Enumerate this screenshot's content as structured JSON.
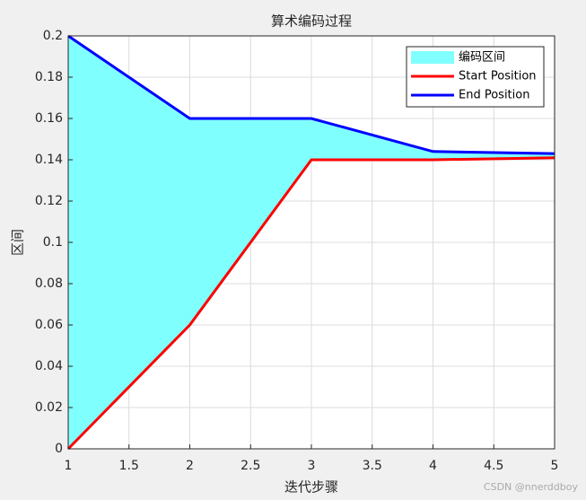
{
  "chart_data": {
    "type": "line",
    "title": "算术编码过程",
    "xlabel": "迭代步骤",
    "ylabel": "区间",
    "x": [
      1,
      2,
      3,
      4,
      5
    ],
    "series": [
      {
        "name": "Start Position",
        "color": "#ff0000",
        "values": [
          0,
          0.06,
          0.14,
          0.14,
          0.141
        ]
      },
      {
        "name": "End Position",
        "color": "#0000ff",
        "values": [
          0.2,
          0.16,
          0.16,
          0.144,
          0.143
        ]
      }
    ],
    "fill": {
      "name": "编码区间",
      "color": "#80ffff"
    },
    "xlim": [
      1,
      5
    ],
    "xticks": [
      1,
      1.5,
      2,
      2.5,
      3,
      3.5,
      4,
      4.5,
      5
    ],
    "ylim": [
      0,
      0.2
    ],
    "yticks": [
      0,
      0.02,
      0.04,
      0.06,
      0.08,
      0.1,
      0.12,
      0.14,
      0.16,
      0.18,
      0.2
    ],
    "grid": true,
    "legend": "northeast",
    "watermark": "CSDN @nnerddboy"
  }
}
